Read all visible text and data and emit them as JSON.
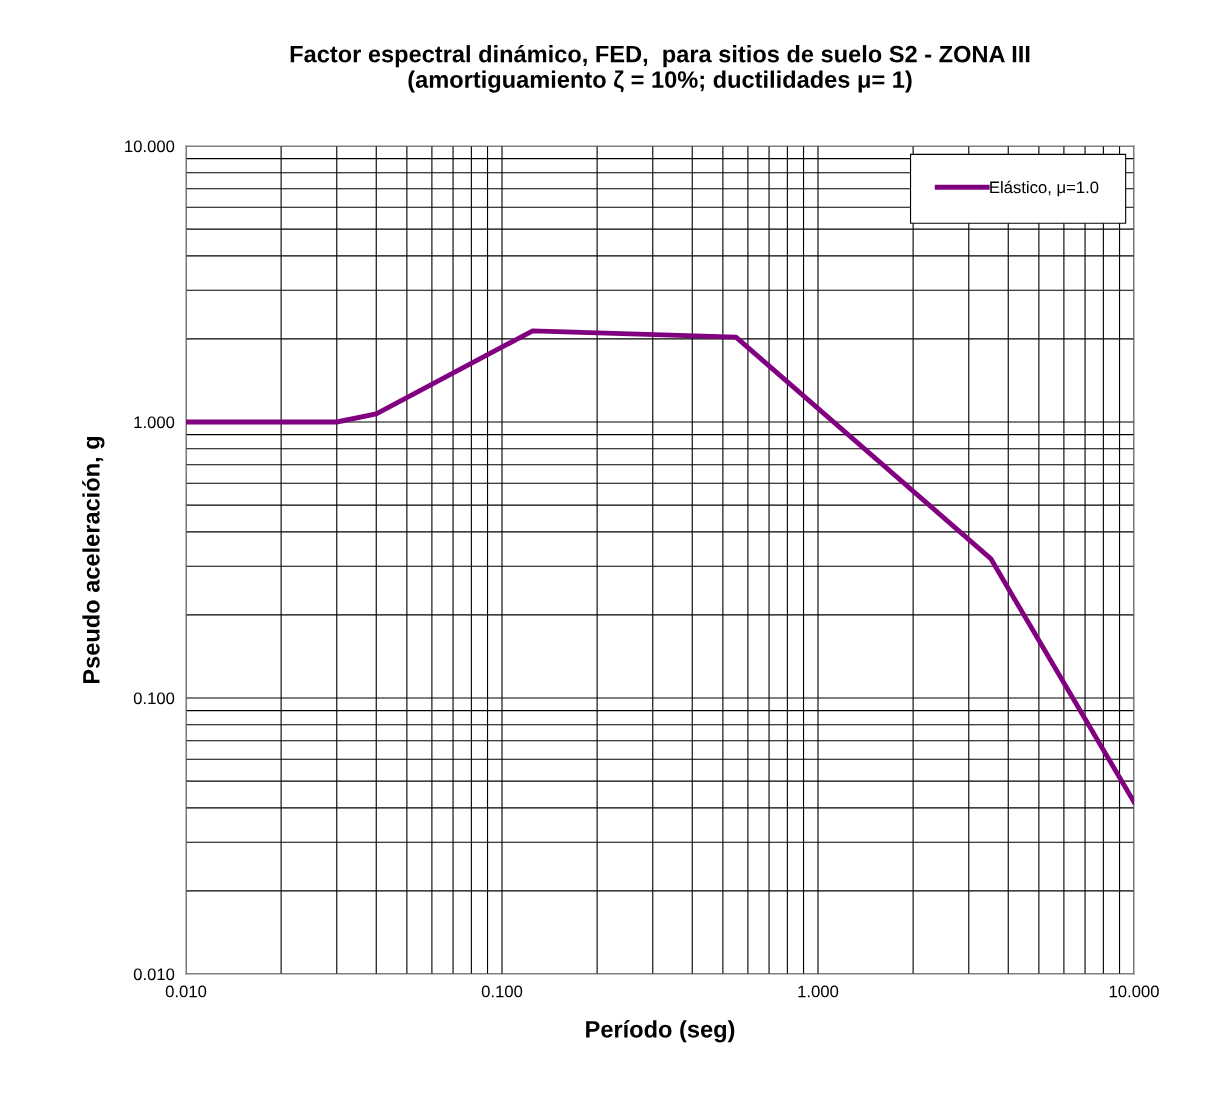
{
  "chart_data": {
    "type": "line",
    "title": "Factor espectral dinámico, FED,  para sitios de suelo S2 - ZONA III\n(amortiguamiento ζ = 10%; ductilidades μ= 1)",
    "xlabel": "Período (seg)",
    "ylabel": "Pseudo aceleración, g",
    "series": [
      {
        "name": "Elástico, μ=1.0",
        "color": "#800080",
        "x": [
          0.01,
          0.03,
          0.04,
          0.125,
          0.55,
          3.52,
          10.0
        ],
        "values": [
          1.0,
          1.0,
          1.07,
          2.14,
          2.03,
          0.32,
          0.042
        ]
      }
    ],
    "log": "xy",
    "xlim": [
      0.01,
      10
    ],
    "ylim": [
      0.01,
      10
    ],
    "xticks": [
      {
        "value": 0.01,
        "label": "0.010"
      },
      {
        "value": 0.1,
        "label": "0.100"
      },
      {
        "value": 1,
        "label": "1.000"
      },
      {
        "value": 10,
        "label": "10.000"
      }
    ],
    "yticks": [
      {
        "value": 0.01,
        "label": "0.010"
      },
      {
        "value": 0.1,
        "label": "0.100"
      },
      {
        "value": 1,
        "label": "1.000"
      },
      {
        "value": 10,
        "label": "10.000"
      }
    ],
    "grid": true,
    "legend": "top right",
    "marker": "none",
    "line_style": "solid"
  }
}
